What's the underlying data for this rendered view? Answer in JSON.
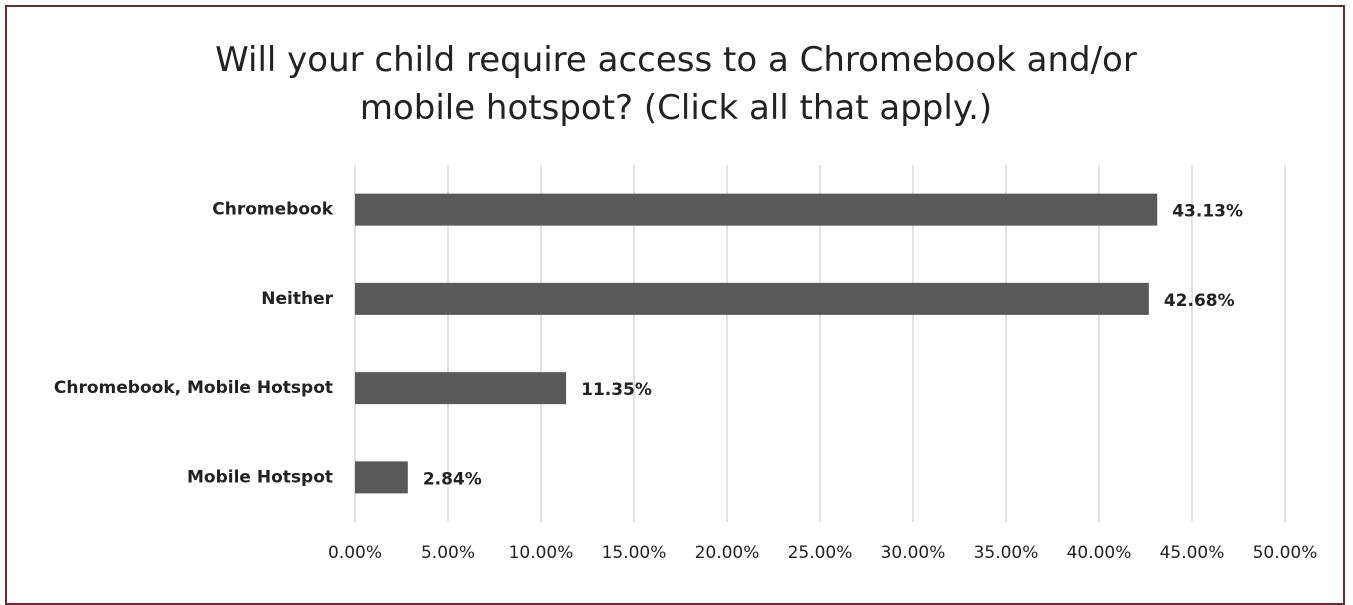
{
  "chart_data": {
    "type": "bar",
    "orientation": "horizontal",
    "title": "Will your child require access to a Chromebook and/or mobile hotspot? (Click all that apply.)",
    "categories": [
      "Chromebook",
      "Neither",
      "Chromebook, Mobile Hotspot",
      "Mobile Hotspot"
    ],
    "values": [
      43.13,
      42.68,
      11.35,
      2.84
    ],
    "value_labels": [
      "43.13%",
      "42.68%",
      "11.35%",
      "2.84%"
    ],
    "color": "#595959",
    "xlim": [
      0,
      50
    ],
    "xticks": [
      {
        "value": 0,
        "label": "0.00%"
      },
      {
        "value": 5,
        "label": "5.00%"
      },
      {
        "value": 10,
        "label": "10.00%"
      },
      {
        "value": 15,
        "label": "15.00%"
      },
      {
        "value": 20,
        "label": "20.00%"
      },
      {
        "value": 25,
        "label": "25.00%"
      },
      {
        "value": 30,
        "label": "30.00%"
      },
      {
        "value": 35,
        "label": "35.00%"
      },
      {
        "value": 40,
        "label": "40.00%"
      },
      {
        "value": 45,
        "label": "45.00%"
      },
      {
        "value": 50,
        "label": "50.00%"
      }
    ],
    "grid": true
  }
}
